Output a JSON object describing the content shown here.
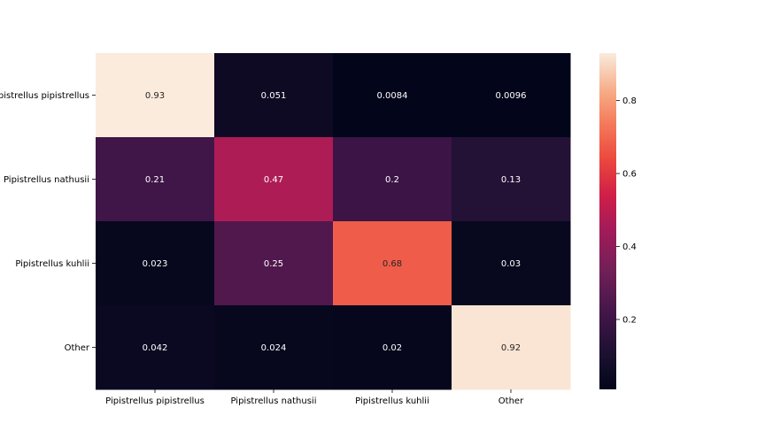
{
  "chart_data": {
    "type": "heatmap",
    "row_labels": [
      "Pipistrellus pipistrellus",
      "Pipistrellus nathusii",
      "Pipistrellus kuhlii",
      "Other"
    ],
    "col_labels": [
      "Pipistrellus pipistrellus",
      "Pipistrellus nathusii",
      "Pipistrellus kuhlii",
      "Other"
    ],
    "values": [
      [
        0.93,
        0.051,
        0.0084,
        0.0096
      ],
      [
        0.21,
        0.47,
        0.2,
        0.13
      ],
      [
        0.023,
        0.25,
        0.68,
        0.03
      ],
      [
        0.042,
        0.024,
        0.02,
        0.92
      ]
    ],
    "annotations": [
      [
        "0.93",
        "0.051",
        "0.0084",
        "0.0096"
      ],
      [
        "0.21",
        "0.47",
        "0.2",
        "0.13"
      ],
      [
        "0.023",
        "0.25",
        "0.68",
        "0.03"
      ],
      [
        "0.042",
        "0.024",
        "0.02",
        "0.92"
      ]
    ],
    "colormap": "rocket",
    "colorbar": {
      "vmin": 0.0084,
      "vmax": 0.93,
      "ticks": [
        0.2,
        0.4,
        0.6,
        0.8
      ],
      "tick_labels": [
        "0.2",
        "0.4",
        "0.6",
        "0.8"
      ]
    },
    "title": "",
    "xlabel": "",
    "ylabel": ""
  }
}
